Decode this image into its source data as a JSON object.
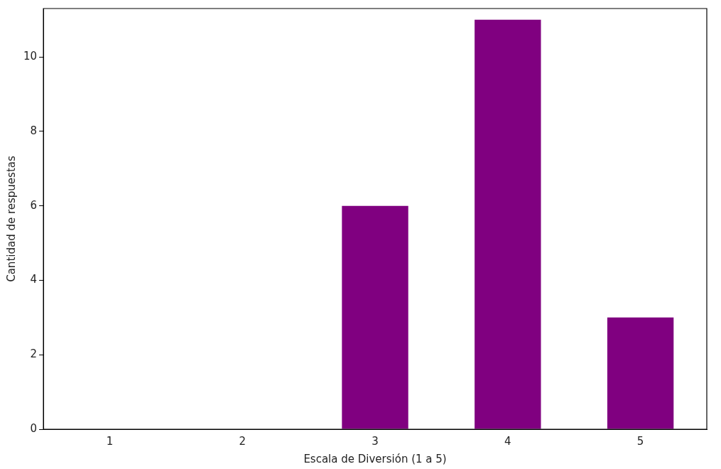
{
  "chart_data": {
    "type": "bar",
    "xlabel": "Escala de Diversión (1 a 5)",
    "ylabel": "Cantidad de respuestas",
    "categories": [
      "1",
      "2",
      "3",
      "4",
      "5"
    ],
    "values": [
      0,
      0,
      6,
      11,
      3
    ],
    "color": "#800080",
    "ylim": [
      0,
      11.3
    ],
    "yticks": [
      0,
      2,
      4,
      6,
      8,
      10
    ],
    "grid": false,
    "legend": false
  }
}
